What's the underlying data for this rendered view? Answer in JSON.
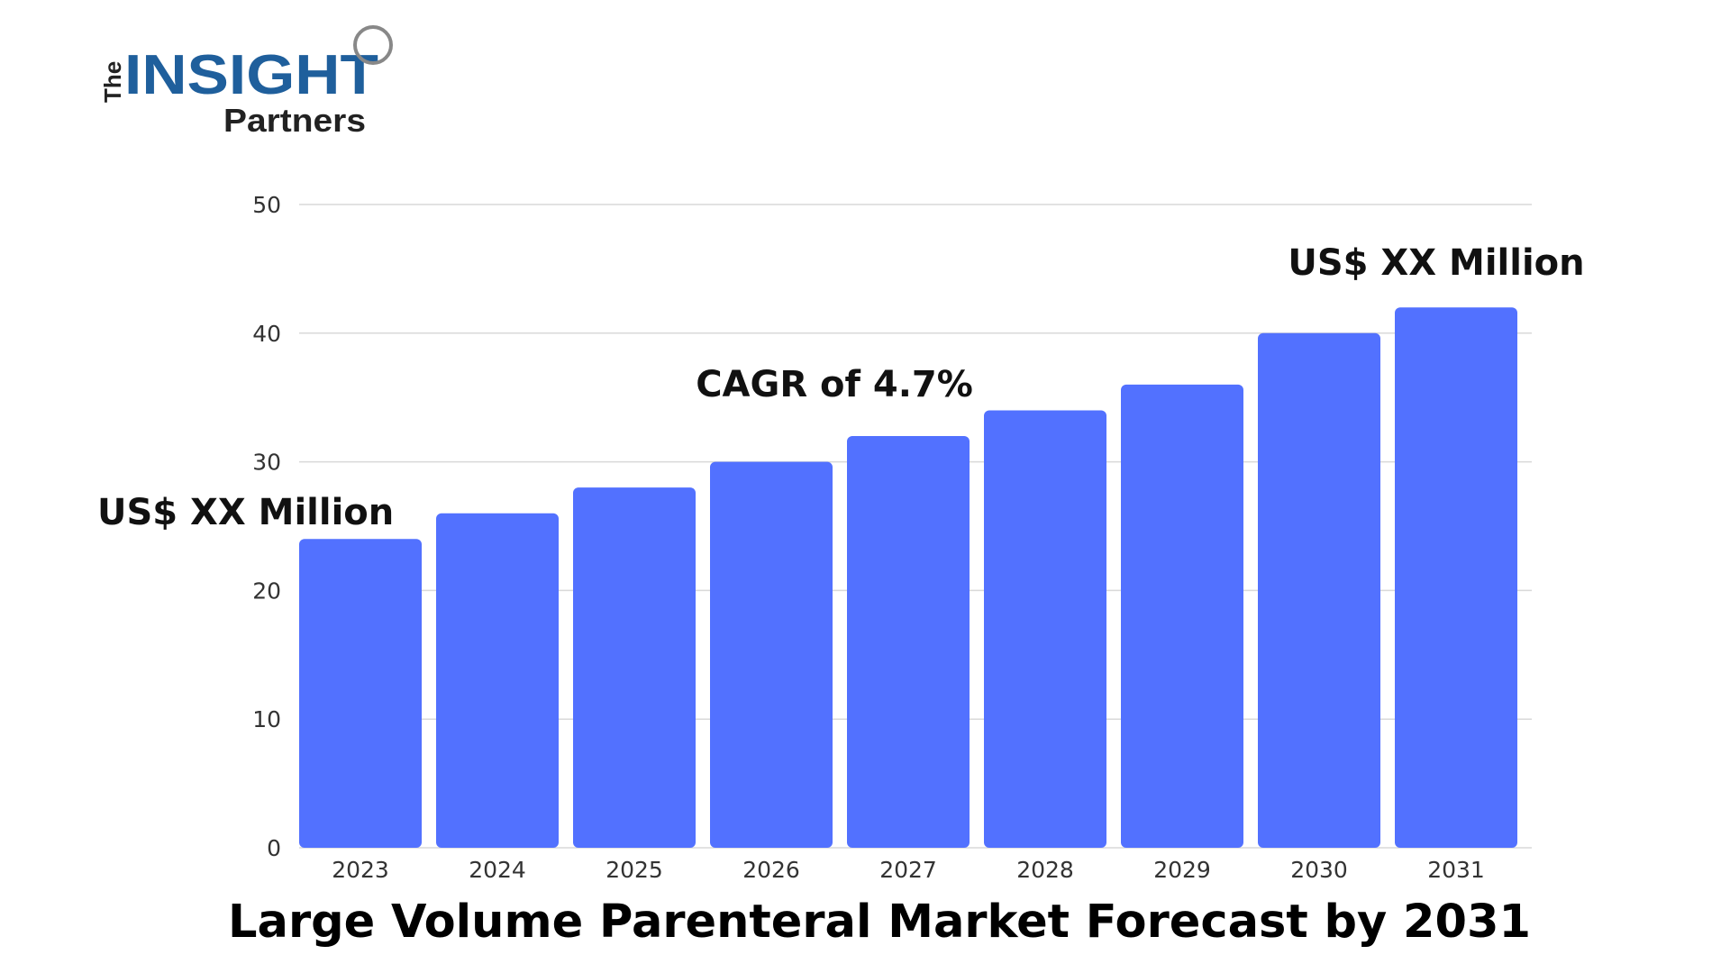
{
  "logo": {
    "line1": "The",
    "line2": "INSIGHT",
    "line3": "Partners"
  },
  "colors": {
    "bar": "#5271ff",
    "grid": "#d9d9d9",
    "logo_blue": "#1f5f9c",
    "logo_dark": "#222222"
  },
  "chart_data": {
    "type": "bar",
    "title": "Large Volume Parenteral Market Forecast by 2031",
    "categories": [
      "2023",
      "2024",
      "2025",
      "2026",
      "2027",
      "2028",
      "2029",
      "2030",
      "2031"
    ],
    "values": [
      24,
      26,
      28,
      30,
      32,
      34,
      36,
      40,
      42
    ],
    "ylim": [
      0,
      50
    ],
    "yticks": [
      0,
      10,
      20,
      30,
      40,
      50
    ],
    "grid": true,
    "annotations": {
      "start_value": "US$ XX Million",
      "cagr": "CAGR of 4.7%",
      "end_value": "US$ XX Million"
    }
  }
}
